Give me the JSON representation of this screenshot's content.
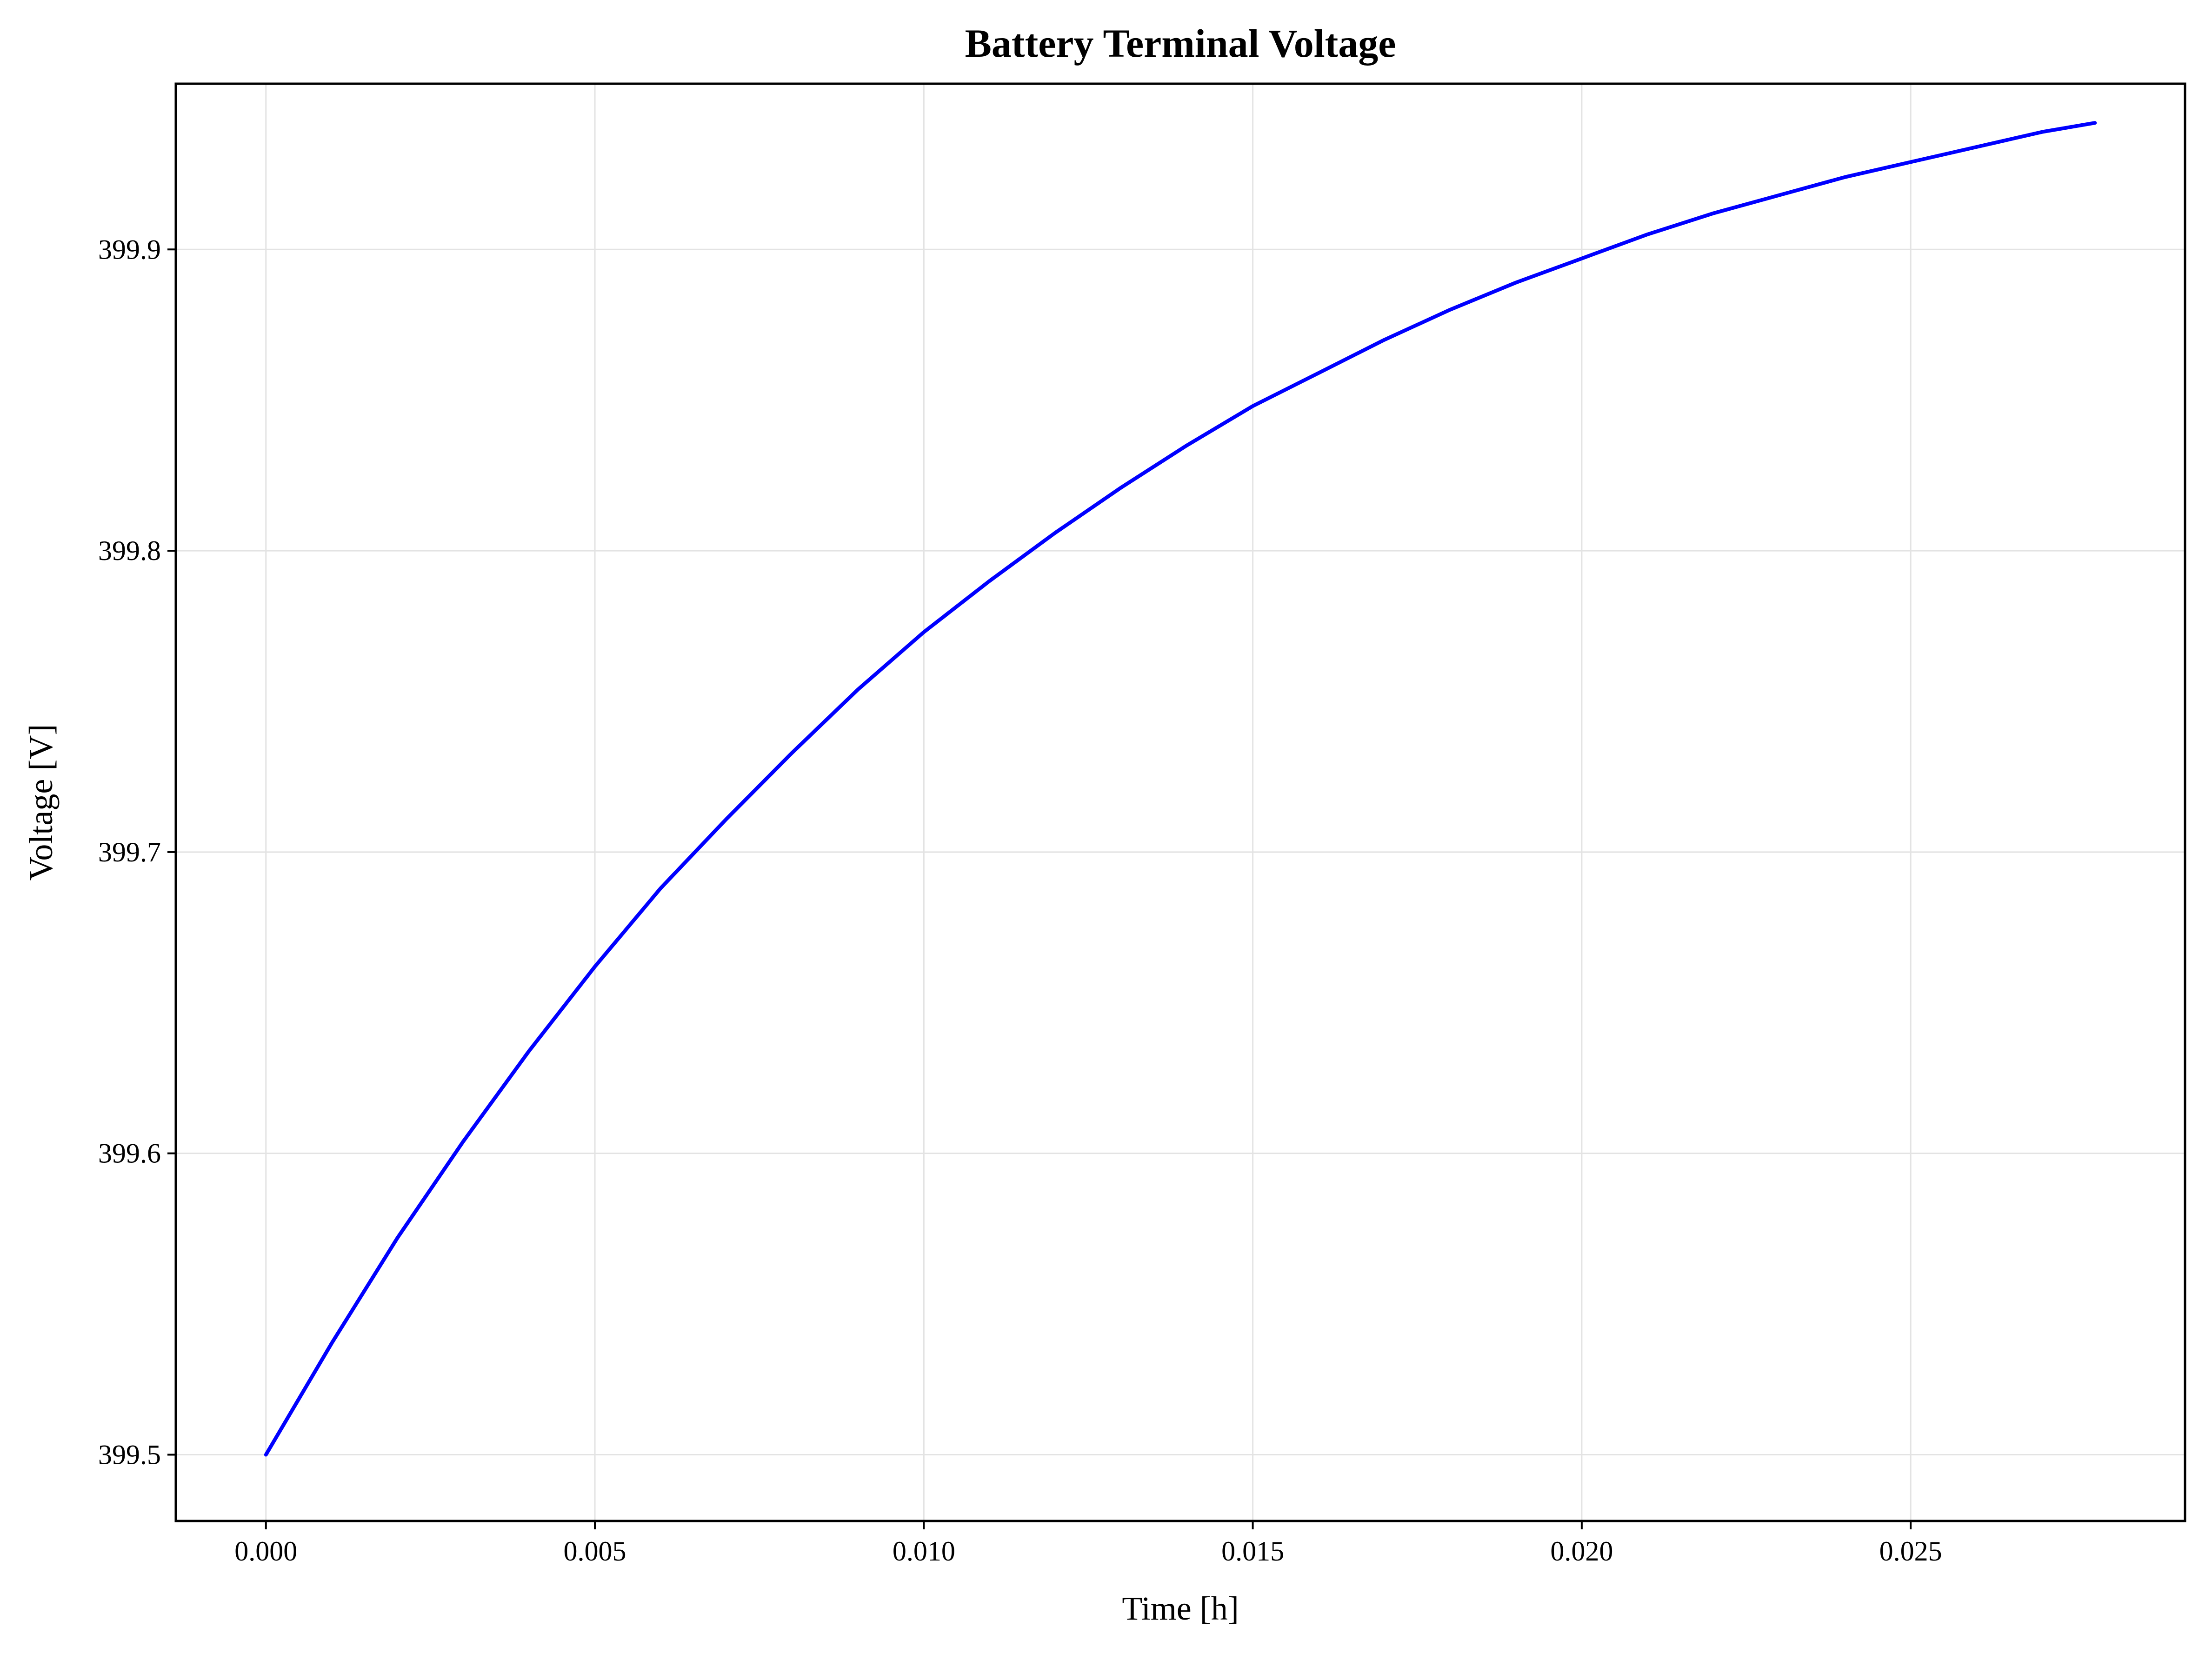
{
  "chart_data": {
    "type": "line",
    "title": "Battery Terminal Voltage",
    "xlabel": "Time [h]",
    "ylabel": "Voltage [V]",
    "xlim": [
      -0.00137,
      0.02917
    ],
    "ylim": [
      399.478,
      399.955
    ],
    "grid": true,
    "legend": "none",
    "x_ticks": [
      0.0,
      0.005,
      0.01,
      0.015,
      0.02,
      0.025
    ],
    "x_tick_labels": [
      "0.000",
      "0.005",
      "0.010",
      "0.015",
      "0.020",
      "0.025"
    ],
    "y_ticks": [
      399.5,
      399.6,
      399.7,
      399.8,
      399.9
    ],
    "y_tick_labels": [
      "399.5",
      "399.6",
      "399.7",
      "399.8",
      "399.9"
    ],
    "series": [
      {
        "color": "#0000ff",
        "x": [
          0.0,
          0.001,
          0.002,
          0.003,
          0.004,
          0.005,
          0.006,
          0.007,
          0.008,
          0.009,
          0.01,
          0.011,
          0.012,
          0.013,
          0.014,
          0.015,
          0.016,
          0.017,
          0.018,
          0.019,
          0.02,
          0.021,
          0.022,
          0.023,
          0.024,
          0.025,
          0.026,
          0.027,
          0.0278
        ],
        "y": [
          399.5,
          399.537,
          399.572,
          399.604,
          399.634,
          399.662,
          399.688,
          399.711,
          399.733,
          399.754,
          399.773,
          399.79,
          399.806,
          399.821,
          399.835,
          399.848,
          399.859,
          399.87,
          399.88,
          399.889,
          399.897,
          399.905,
          399.912,
          399.918,
          399.924,
          399.929,
          399.934,
          399.939,
          399.942
        ]
      }
    ]
  }
}
